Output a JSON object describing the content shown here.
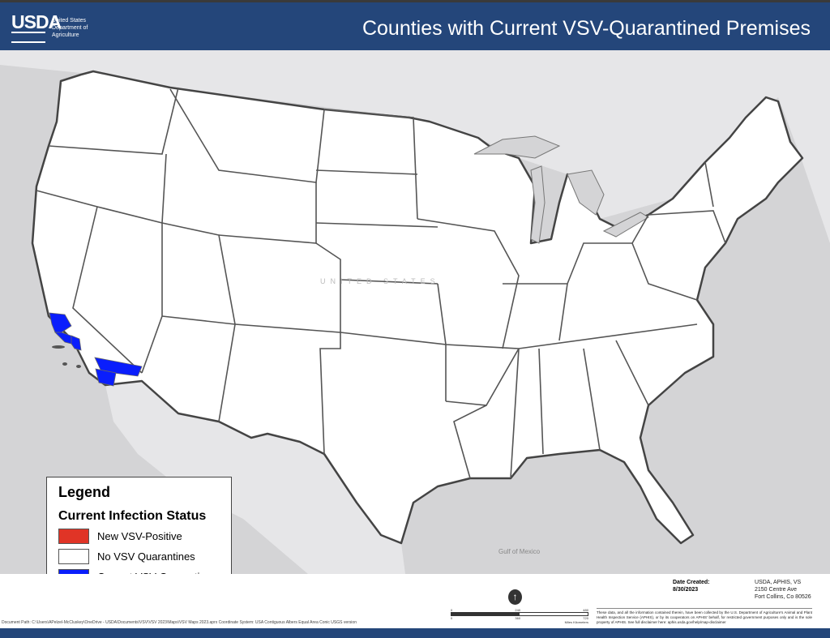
{
  "header": {
    "logo_mark": "USDA",
    "agency": "United States Department of Agriculture",
    "title": "Counties with Current VSV-Quarantined Premises"
  },
  "map": {
    "water_label": "Gulf of Mexico",
    "country_label": "UNITED STATES",
    "colors": {
      "background": "#d4d4d6",
      "land": "#ffffff",
      "new_positive": "#e03426",
      "no_quarantine": "#ffffff",
      "current_quarantine": "#0a1efc",
      "water": "#c9c9cc"
    },
    "quarantined_areas": [
      "Southern California coastal counties (Santa Barbara / Ventura area)",
      "San Bernardino / Riverside counties"
    ]
  },
  "legend": {
    "title": "Legend",
    "subtitle": "Current Infection Status",
    "items": [
      {
        "label": "New VSV-Positive",
        "color": "#e03426"
      },
      {
        "label": "No VSV Quarantines",
        "color": "#ffffff"
      },
      {
        "label": "Current VSV Quarantines",
        "color": "#0a1efc"
      }
    ]
  },
  "footer": {
    "date_label": "Date Created:",
    "date_value": "8/30/2023",
    "address": [
      "USDA, APHIS, VS",
      "2150 Centre Ave",
      "Fort Collins, Co 80526"
    ],
    "scale_miles": [
      "0",
      "240",
      "480"
    ],
    "scale_km": [
      "0",
      "360",
      "720"
    ],
    "miles_unit": "Miles",
    "km_unit": "Kilometers",
    "disclaimer": "These data, and all the information contained therein, have been collected by the U.S. Department of Agriculture's Animal and Plant Health Inspection Service (APHIS), or by its cooperators on APHIS' behalf, for restricted government purposes only and is the sole property of APHIS. See full disclaimer here: aphis.usda.gov/help/map-disclaimer",
    "document_path": "Document Path: C:\\Users\\APelzel-McCluskey\\OneDrive - USDA\\Documents\\VSV\\VSV 2023\\Maps\\VSV Maps 2023.aprx Coordinate System: USA Contiguous Albers Equal Area Conic USGS version"
  }
}
